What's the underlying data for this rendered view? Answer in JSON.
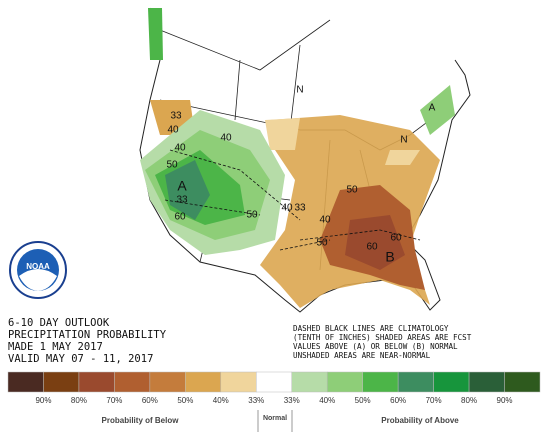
{
  "header": {
    "lines": [
      "6-10 DAY OUTLOOK",
      "PRECIPITATION PROBABILITY",
      "MADE  1 MAY 2017",
      "VALID  MAY 07 - 11, 2017"
    ]
  },
  "note": {
    "lines": [
      "DASHED BLACK LINES ARE CLIMATOLOGY",
      "(TENTH OF INCHES) SHADED AREAS ARE FCST",
      "VALUES ABOVE (A) OR BELOW (B) NORMAL",
      "UNSHADED AREAS ARE NEAR-NORMAL"
    ]
  },
  "logo": {
    "text": "NOAA"
  },
  "map": {
    "labels": [
      "A",
      "B",
      "A",
      "40",
      "50",
      "60",
      "50",
      "40",
      "33",
      "50",
      "60",
      "60",
      "40",
      "33",
      "40",
      "50",
      "N",
      "N",
      "33",
      "40"
    ]
  },
  "legend": {
    "colors": [
      "#4a2a22",
      "#7a3f12",
      "#9a4a2e",
      "#b05f30",
      "#c47c3c",
      "#dba650",
      "#f0d59c",
      "#ffffff",
      "#b6dca8",
      "#8ece78",
      "#4cb548",
      "#3d8d60",
      "#17953c",
      "#2a5f38",
      "#2e5a1e"
    ],
    "labels": [
      "90%",
      "80%",
      "70%",
      "60%",
      "50%",
      "40%",
      "33%",
      "33%",
      "40%",
      "50%",
      "60%",
      "70%",
      "80%",
      "90%"
    ],
    "below": "Probability of Below",
    "normal": "Normal",
    "above": "Probability of Above"
  }
}
